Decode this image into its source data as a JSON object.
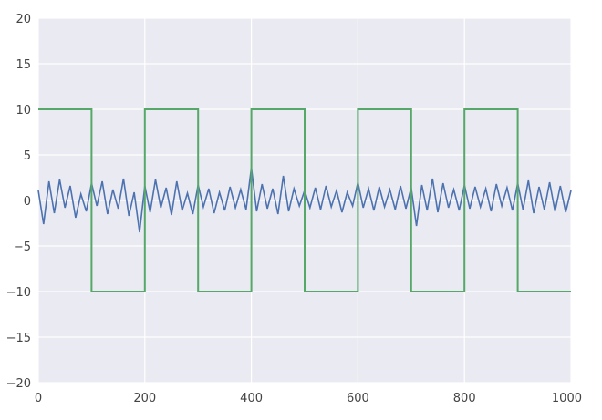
{
  "chart_data": {
    "type": "line",
    "title": "",
    "xlabel": "",
    "ylabel": "",
    "xlim": [
      0,
      1000
    ],
    "ylim": [
      -20,
      20
    ],
    "xticks": [
      0,
      200,
      400,
      600,
      800,
      1000
    ],
    "yticks": [
      -20,
      -15,
      -10,
      -5,
      0,
      5,
      10,
      15,
      20
    ],
    "xtick_labels": [
      "0",
      "200",
      "400",
      "600",
      "800",
      "1000"
    ],
    "ytick_labels": [
      "−20",
      "−15",
      "−10",
      "−5",
      "0",
      "5",
      "10",
      "15",
      "20"
    ],
    "grid": true,
    "background": "#eaeaf2",
    "grid_color": "#ffffff",
    "series": [
      {
        "color": "#4c72b0",
        "x": [
          0,
          10,
          20,
          30,
          40,
          50,
          60,
          70,
          80,
          90,
          100,
          110,
          120,
          130,
          140,
          150,
          160,
          170,
          180,
          190,
          200,
          210,
          220,
          230,
          240,
          250,
          260,
          270,
          280,
          290,
          300,
          310,
          320,
          330,
          340,
          350,
          360,
          370,
          380,
          390,
          400,
          410,
          420,
          430,
          440,
          450,
          460,
          470,
          480,
          490,
          500,
          510,
          520,
          530,
          540,
          550,
          560,
          570,
          580,
          590,
          600,
          610,
          620,
          630,
          640,
          650,
          660,
          670,
          680,
          690,
          700,
          710,
          720,
          730,
          740,
          750,
          760,
          770,
          780,
          790,
          800,
          810,
          820,
          830,
          840,
          850,
          860,
          870,
          880,
          890,
          900,
          910,
          920,
          930,
          940,
          950,
          960,
          970,
          980,
          990,
          1000
        ],
        "y": [
          1.1,
          -2.6,
          2.1,
          -1.4,
          2.3,
          -0.8,
          1.6,
          -1.9,
          0.7,
          -1.2,
          1.9,
          -0.6,
          2.1,
          -1.5,
          1.2,
          -0.9,
          2.4,
          -1.7,
          0.9,
          -3.5,
          1.6,
          -1.3,
          2.3,
          -0.8,
          1.4,
          -1.6,
          2.1,
          -1.1,
          0.8,
          -1.5,
          1.7,
          -0.7,
          1.3,
          -1.4,
          0.9,
          -1.1,
          1.5,
          -0.8,
          1.2,
          -1.0,
          3.6,
          -1.2,
          1.8,
          -0.9,
          1.3,
          -1.5,
          2.7,
          -1.2,
          1.3,
          -0.6,
          1.1,
          -0.8,
          1.4,
          -1.0,
          1.6,
          -0.7,
          1.1,
          -1.3,
          0.9,
          -0.6,
          2.0,
          -0.8,
          1.3,
          -1.1,
          1.5,
          -0.7,
          1.2,
          -1.0,
          1.6,
          -0.9,
          1.4,
          -2.8,
          1.7,
          -1.1,
          2.4,
          -1.3,
          1.9,
          -0.8,
          1.2,
          -1.1,
          1.7,
          -0.9,
          1.5,
          -0.7,
          1.3,
          -1.2,
          1.8,
          -0.6,
          1.4,
          -1.1,
          1.9,
          -1.0,
          2.2,
          -1.4,
          1.5,
          -1.0,
          2.0,
          -1.2,
          1.6,
          -1.3,
          1.1
        ]
      },
      {
        "color": "#55a868",
        "x": [
          0,
          100,
          100,
          200,
          200,
          300,
          300,
          400,
          400,
          500,
          500,
          600,
          600,
          700,
          700,
          800,
          800,
          900,
          900,
          1000
        ],
        "y": [
          10,
          10,
          -10,
          -10,
          10,
          10,
          -10,
          -10,
          10,
          10,
          -10,
          -10,
          10,
          10,
          -10,
          -10,
          10,
          10,
          -10,
          -10
        ]
      }
    ]
  }
}
